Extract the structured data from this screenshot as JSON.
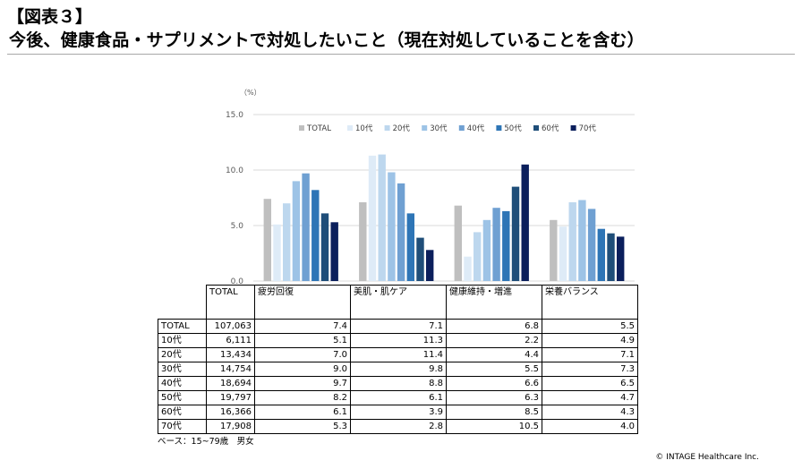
{
  "figure_label": "【図表３】",
  "title": "今後、健康食品・サプリメントで対処したいこと（現在対処していることを含む）",
  "note": "ベース：15~79歳　男女",
  "credit": "© INTAGE Healthcare Inc.",
  "table": {
    "total_header": "TOTAL",
    "row_labels": [
      "TOTAL",
      "10代",
      "20代",
      "30代",
      "40代",
      "50代",
      "60代",
      "70代"
    ],
    "totals": [
      "107,063",
      "6,111",
      "13,434",
      "14,754",
      "18,694",
      "19,797",
      "16,366",
      "17,908"
    ]
  },
  "chart_data": {
    "type": "bar",
    "ylabel": "（%）",
    "ylim": [
      0,
      15
    ],
    "yticks": [
      "0.0",
      "5.0",
      "10.0",
      "15.0"
    ],
    "grid": true,
    "legend_position": "top-right",
    "categories": [
      "疲労回復",
      "美肌・肌ケア",
      "健康維持・増進",
      "栄養バランス"
    ],
    "series": [
      {
        "name": "TOTAL",
        "color": "#bfbfbf",
        "values": [
          7.4,
          7.1,
          6.8,
          5.5
        ]
      },
      {
        "name": "10代",
        "color": "#deebf7",
        "values": [
          5.1,
          11.3,
          2.2,
          4.9
        ]
      },
      {
        "name": "20代",
        "color": "#bdd7ee",
        "values": [
          7.0,
          11.4,
          4.4,
          7.1
        ]
      },
      {
        "name": "30代",
        "color": "#9dc3e6",
        "values": [
          9.0,
          9.8,
          5.5,
          7.3
        ]
      },
      {
        "name": "40代",
        "color": "#6fa0d2",
        "values": [
          9.7,
          8.8,
          6.6,
          6.5
        ]
      },
      {
        "name": "50代",
        "color": "#2e75b6",
        "values": [
          8.2,
          6.1,
          6.3,
          4.7
        ]
      },
      {
        "name": "60代",
        "color": "#1f4e79",
        "values": [
          6.1,
          3.9,
          8.5,
          4.3
        ]
      },
      {
        "name": "70代",
        "color": "#0b1f5c",
        "values": [
          5.3,
          2.8,
          10.5,
          4.0
        ]
      }
    ]
  }
}
